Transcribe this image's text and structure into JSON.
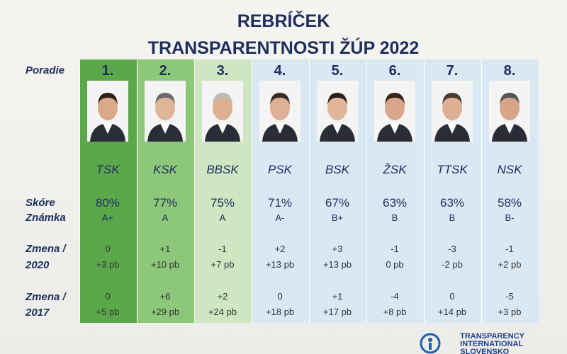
{
  "header": {
    "title": [
      "REBRÍČEK",
      "TRANSPARENTNOSTI ŽÚP 2022"
    ]
  },
  "row_labels": {
    "rank": "Poradie",
    "score": "Skóre",
    "grade": "Známka",
    "change_2020": [
      "Zmena /",
      "2020"
    ],
    "change_2017": [
      "Zmena /",
      "2017"
    ]
  },
  "columns": [
    {
      "rank": "1.",
      "region": "TSK",
      "score": "80%",
      "grade": "A+",
      "change_2020": [
        "0",
        "+3 pb"
      ],
      "change_2017": [
        "0",
        "+5 pb"
      ]
    },
    {
      "rank": "2.",
      "region": "KSK",
      "score": "77%",
      "grade": "A",
      "change_2020": [
        "+1",
        "+10 pb"
      ],
      "change_2017": [
        "+6",
        "+29 pb"
      ]
    },
    {
      "rank": "3.",
      "region": "BBSK",
      "score": "75%",
      "grade": "A",
      "change_2020": [
        "-1",
        "+7 pb"
      ],
      "change_2017": [
        "+2",
        "+24 pb"
      ]
    },
    {
      "rank": "4.",
      "region": "PSK",
      "score": "71%",
      "grade": "A-",
      "change_2020": [
        "+2",
        "+13 pb"
      ],
      "change_2017": [
        "0",
        "+18 pb"
      ]
    },
    {
      "rank": "5.",
      "region": "BSK",
      "score": "67%",
      "grade": "B+",
      "change_2020": [
        "+3",
        "+13 pb"
      ],
      "change_2017": [
        "+1",
        "+17 pb"
      ]
    },
    {
      "rank": "6.",
      "region": "ŽSK",
      "score": "63%",
      "grade": "B",
      "change_2020": [
        "-1",
        "0 pb"
      ],
      "change_2017": [
        "-4",
        "+8 pb"
      ]
    },
    {
      "rank": "7.",
      "region": "TTSK",
      "score": "63%",
      "grade": "B",
      "change_2020": [
        "-3",
        "-2 pb"
      ],
      "change_2017": [
        "0",
        "+14 pb"
      ]
    },
    {
      "rank": "8.",
      "region": "NSK",
      "score": "58%",
      "grade": "B-",
      "change_2020": [
        "-1",
        "+2 pb"
      ],
      "change_2017": [
        "-5",
        "+3 pb"
      ]
    }
  ],
  "footer": {
    "logo": [
      "TRANSPARENCY",
      "INTERNATIONAL",
      "SLOVENSKO"
    ]
  }
}
